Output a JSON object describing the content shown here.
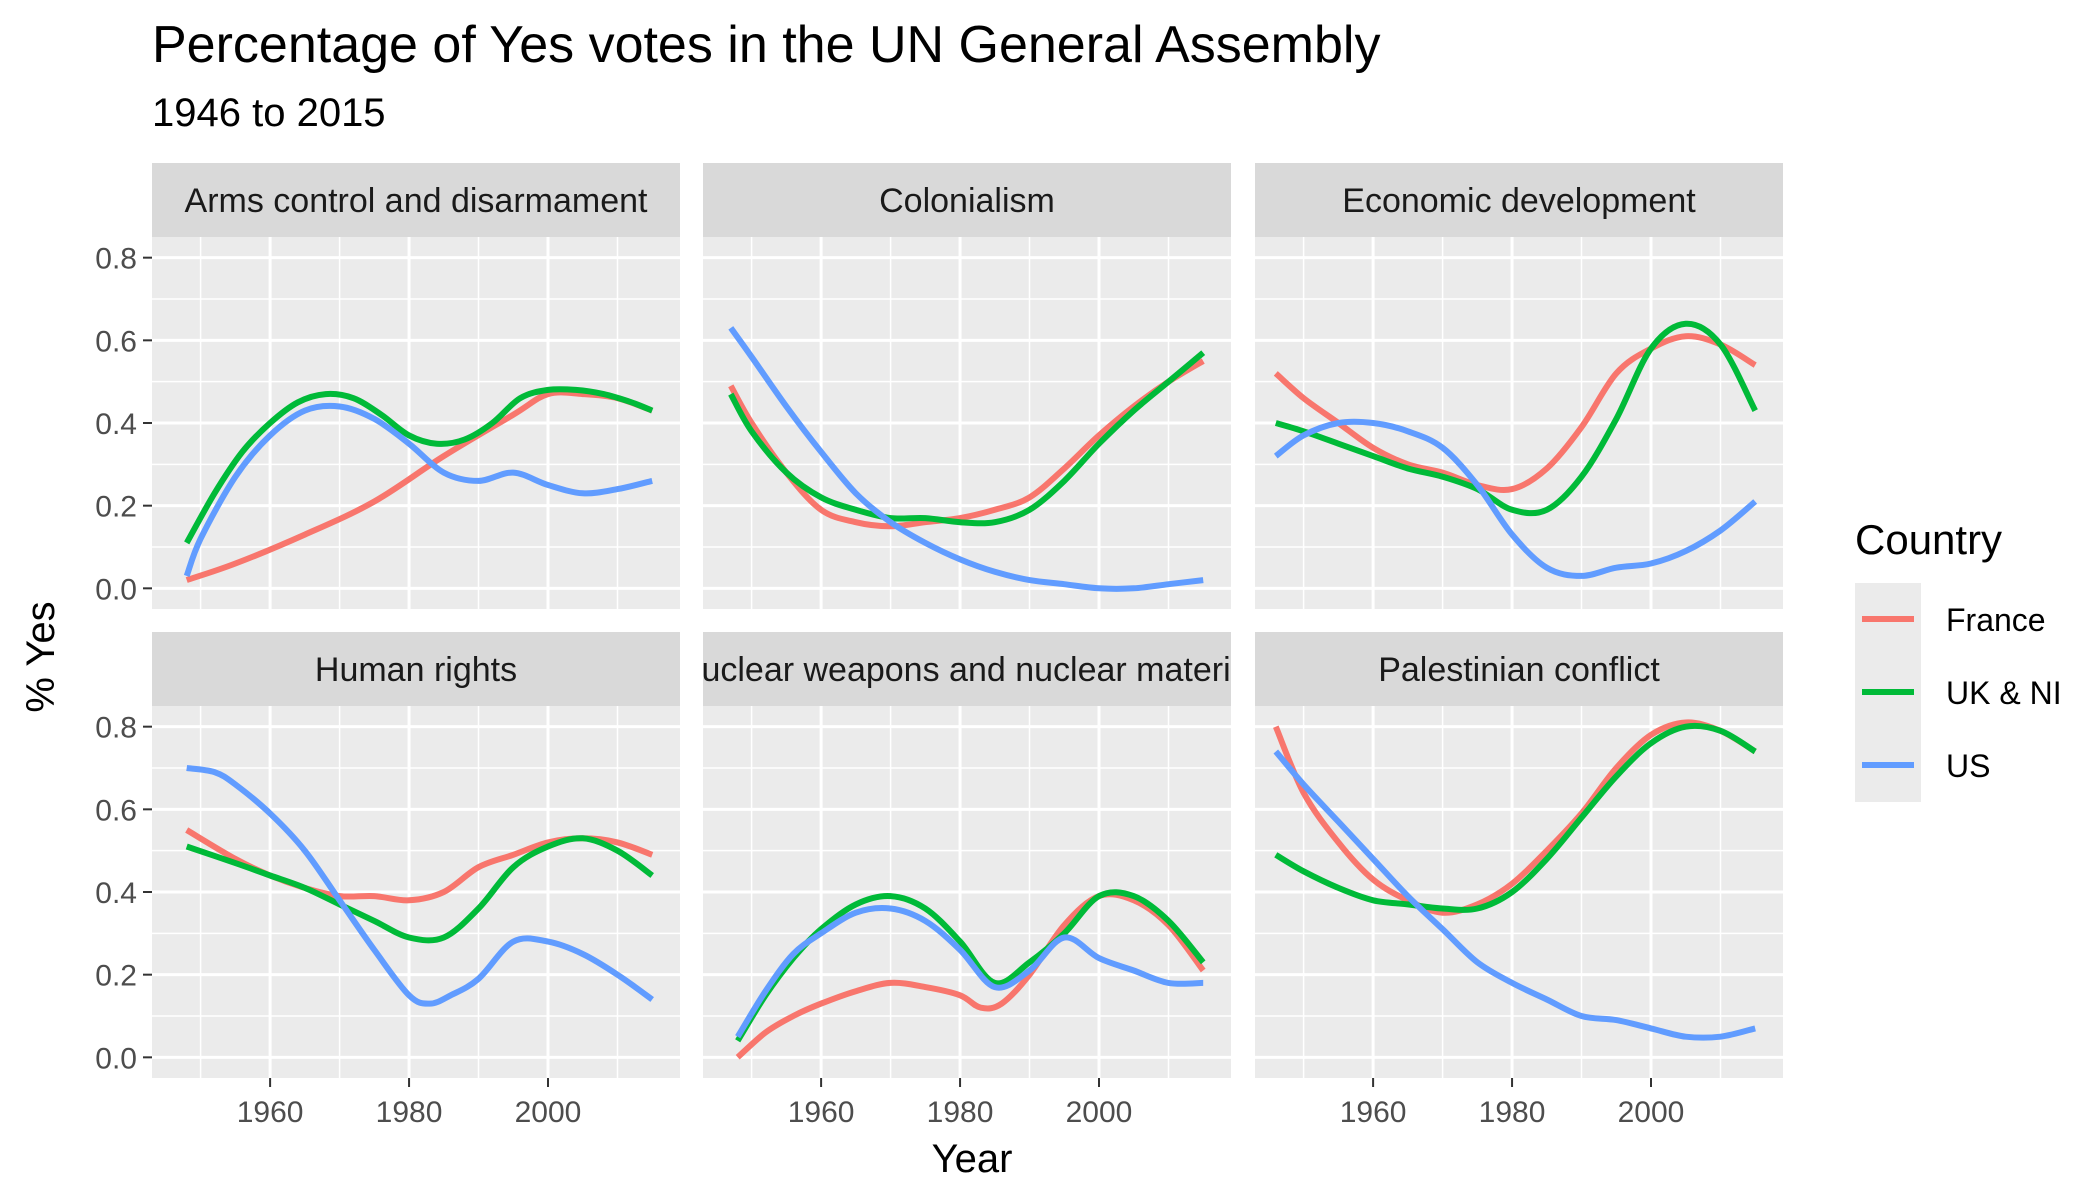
{
  "chart_data": {
    "type": "line",
    "title": "Percentage of Yes votes in the UN General Assembly",
    "subtitle": "1946 to 2015",
    "xlabel": "Year",
    "ylabel": "% Yes",
    "xlim": [
      1943,
      2019
    ],
    "ylim": [
      -0.05,
      0.85
    ],
    "x_ticks": [
      1960,
      1980,
      2000
    ],
    "y_ticks": [
      0.0,
      0.2,
      0.4,
      0.6,
      0.8
    ],
    "x_tick_labels": [
      "1960",
      "1980",
      "2000"
    ],
    "y_tick_labels": [
      "0.0",
      "0.2",
      "0.4",
      "0.6",
      "0.8"
    ],
    "grid": true,
    "legend": {
      "title": "Country",
      "position": "right",
      "entries": [
        {
          "name": "France",
          "color": "#F8766D"
        },
        {
          "name": "UK & NI",
          "color": "#00BA38"
        },
        {
          "name": "US",
          "color": "#619CFF"
        }
      ]
    },
    "facets": [
      {
        "label": "Arms control and disarmament",
        "series": [
          {
            "name": "France",
            "x": [
              1948,
              1955,
              1965,
              1975,
              1985,
              1995,
              2000,
              2005,
              2010,
              2015
            ],
            "y": [
              0.02,
              0.06,
              0.13,
              0.21,
              0.32,
              0.42,
              0.47,
              0.47,
              0.46,
              0.43
            ]
          },
          {
            "name": "UK & NI",
            "x": [
              1948,
              1952,
              1956,
              1960,
              1964,
              1968,
              1972,
              1976,
              1980,
              1984,
              1988,
              1992,
              1996,
              2000,
              2004,
              2008,
              2012,
              2015
            ],
            "y": [
              0.11,
              0.23,
              0.33,
              0.4,
              0.45,
              0.47,
              0.46,
              0.42,
              0.37,
              0.35,
              0.36,
              0.4,
              0.46,
              0.48,
              0.48,
              0.47,
              0.45,
              0.43
            ]
          },
          {
            "name": "US",
            "x": [
              1948,
              1950,
              1955,
              1960,
              1965,
              1970,
              1975,
              1980,
              1985,
              1990,
              1995,
              2000,
              2005,
              2010,
              2015
            ],
            "y": [
              0.03,
              0.12,
              0.27,
              0.37,
              0.43,
              0.44,
              0.41,
              0.35,
              0.28,
              0.26,
              0.28,
              0.25,
              0.23,
              0.24,
              0.26
            ]
          }
        ]
      },
      {
        "label": "Colonialism",
        "series": [
          {
            "name": "France",
            "x": [
              1947,
              1950,
              1955,
              1960,
              1965,
              1970,
              1975,
              1980,
              1985,
              1990,
              1995,
              2000,
              2005,
              2010,
              2015
            ],
            "y": [
              0.49,
              0.4,
              0.28,
              0.19,
              0.16,
              0.15,
              0.16,
              0.17,
              0.19,
              0.22,
              0.29,
              0.37,
              0.44,
              0.5,
              0.55
            ]
          },
          {
            "name": "UK & NI",
            "x": [
              1947,
              1950,
              1955,
              1960,
              1965,
              1970,
              1975,
              1980,
              1985,
              1990,
              1995,
              2000,
              2005,
              2010,
              2015
            ],
            "y": [
              0.47,
              0.38,
              0.28,
              0.22,
              0.19,
              0.17,
              0.17,
              0.16,
              0.16,
              0.19,
              0.26,
              0.35,
              0.43,
              0.5,
              0.57
            ]
          },
          {
            "name": "US",
            "x": [
              1947,
              1950,
              1955,
              1960,
              1965,
              1970,
              1975,
              1980,
              1985,
              1990,
              1995,
              2000,
              2005,
              2010,
              2015
            ],
            "y": [
              0.63,
              0.56,
              0.44,
              0.33,
              0.23,
              0.16,
              0.11,
              0.07,
              0.04,
              0.02,
              0.01,
              0.0,
              0.0,
              0.01,
              0.02
            ]
          }
        ]
      },
      {
        "label": "Economic development",
        "series": [
          {
            "name": "France",
            "x": [
              1946,
              1950,
              1955,
              1960,
              1965,
              1970,
              1975,
              1980,
              1985,
              1990,
              1995,
              2000,
              2005,
              2010,
              2015
            ],
            "y": [
              0.52,
              0.46,
              0.4,
              0.34,
              0.3,
              0.28,
              0.25,
              0.24,
              0.29,
              0.39,
              0.52,
              0.58,
              0.61,
              0.59,
              0.54
            ]
          },
          {
            "name": "UK & NI",
            "x": [
              1946,
              1950,
              1955,
              1960,
              1965,
              1970,
              1975,
              1980,
              1985,
              1990,
              1995,
              2000,
              2005,
              2010,
              2015
            ],
            "y": [
              0.4,
              0.38,
              0.35,
              0.32,
              0.29,
              0.27,
              0.24,
              0.19,
              0.19,
              0.27,
              0.41,
              0.58,
              0.64,
              0.59,
              0.43
            ]
          },
          {
            "name": "US",
            "x": [
              1946,
              1950,
              1955,
              1960,
              1965,
              1970,
              1975,
              1980,
              1985,
              1990,
              1995,
              2000,
              2005,
              2010,
              2015
            ],
            "y": [
              0.32,
              0.37,
              0.4,
              0.4,
              0.38,
              0.34,
              0.25,
              0.13,
              0.05,
              0.03,
              0.05,
              0.06,
              0.09,
              0.14,
              0.21
            ]
          }
        ]
      },
      {
        "label": "Human rights",
        "series": [
          {
            "name": "France",
            "x": [
              1948,
              1955,
              1960,
              1965,
              1970,
              1975,
              1980,
              1985,
              1990,
              1995,
              2000,
              2005,
              2010,
              2015
            ],
            "y": [
              0.55,
              0.48,
              0.44,
              0.41,
              0.39,
              0.39,
              0.38,
              0.4,
              0.46,
              0.49,
              0.52,
              0.53,
              0.52,
              0.49
            ]
          },
          {
            "name": "UK & NI",
            "x": [
              1948,
              1955,
              1960,
              1965,
              1970,
              1975,
              1980,
              1985,
              1990,
              1995,
              2000,
              2005,
              2010,
              2015
            ],
            "y": [
              0.51,
              0.47,
              0.44,
              0.41,
              0.37,
              0.33,
              0.29,
              0.29,
              0.36,
              0.46,
              0.51,
              0.53,
              0.5,
              0.44
            ]
          },
          {
            "name": "US",
            "x": [
              1948,
              1952,
              1955,
              1960,
              1965,
              1970,
              1975,
              1980,
              1983,
              1986,
              1990,
              1995,
              2000,
              2005,
              2010,
              2015
            ],
            "y": [
              0.7,
              0.69,
              0.66,
              0.59,
              0.5,
              0.38,
              0.26,
              0.15,
              0.13,
              0.15,
              0.19,
              0.28,
              0.28,
              0.25,
              0.2,
              0.14
            ]
          }
        ]
      },
      {
        "label": "Nuclear weapons and nuclear material",
        "series": [
          {
            "name": "France",
            "x": [
              1948,
              1952,
              1956,
              1960,
              1965,
              1970,
              1975,
              1980,
              1983,
              1986,
              1990,
              1995,
              2000,
              2005,
              2010,
              2015
            ],
            "y": [
              0.0,
              0.06,
              0.1,
              0.13,
              0.16,
              0.18,
              0.17,
              0.15,
              0.12,
              0.13,
              0.2,
              0.32,
              0.39,
              0.38,
              0.32,
              0.21
            ]
          },
          {
            "name": "UK & NI",
            "x": [
              1948,
              1952,
              1956,
              1960,
              1965,
              1970,
              1975,
              1980,
              1985,
              1990,
              1995,
              2000,
              2005,
              2010,
              2015
            ],
            "y": [
              0.04,
              0.15,
              0.24,
              0.31,
              0.37,
              0.39,
              0.36,
              0.28,
              0.18,
              0.23,
              0.3,
              0.39,
              0.39,
              0.33,
              0.23
            ]
          },
          {
            "name": "US",
            "x": [
              1948,
              1952,
              1956,
              1960,
              1965,
              1970,
              1975,
              1980,
              1985,
              1990,
              1995,
              2000,
              2005,
              2010,
              2015
            ],
            "y": [
              0.05,
              0.16,
              0.25,
              0.3,
              0.35,
              0.36,
              0.33,
              0.26,
              0.17,
              0.21,
              0.29,
              0.24,
              0.21,
              0.18,
              0.18
            ]
          }
        ]
      },
      {
        "label": "Palestinian conflict",
        "series": [
          {
            "name": "France",
            "x": [
              1946,
              1950,
              1955,
              1960,
              1965,
              1970,
              1975,
              1980,
              1985,
              1990,
              1995,
              2000,
              2005,
              2010,
              2015
            ],
            "y": [
              0.8,
              0.64,
              0.52,
              0.43,
              0.38,
              0.35,
              0.37,
              0.42,
              0.5,
              0.59,
              0.7,
              0.78,
              0.81,
              0.79,
              0.74
            ]
          },
          {
            "name": "UK & NI",
            "x": [
              1946,
              1950,
              1955,
              1960,
              1965,
              1970,
              1975,
              1980,
              1985,
              1990,
              1995,
              2000,
              2005,
              2010,
              2015
            ],
            "y": [
              0.49,
              0.45,
              0.41,
              0.38,
              0.37,
              0.36,
              0.36,
              0.4,
              0.48,
              0.58,
              0.68,
              0.76,
              0.8,
              0.79,
              0.74
            ]
          },
          {
            "name": "US",
            "x": [
              1946,
              1950,
              1955,
              1960,
              1965,
              1970,
              1975,
              1980,
              1985,
              1990,
              1995,
              2000,
              2005,
              2010,
              2015
            ],
            "y": [
              0.74,
              0.66,
              0.57,
              0.48,
              0.39,
              0.31,
              0.23,
              0.18,
              0.14,
              0.1,
              0.09,
              0.07,
              0.05,
              0.05,
              0.07
            ]
          }
        ]
      }
    ]
  }
}
